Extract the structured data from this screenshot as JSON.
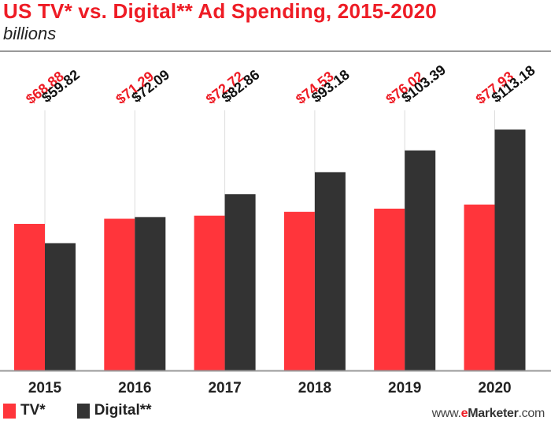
{
  "chart_data": {
    "type": "bar",
    "title": "US TV* vs. Digital** Ad Spending, 2015-2020",
    "subtitle": "billions",
    "xlabel": "",
    "ylabel": "",
    "categories": [
      "2015",
      "2016",
      "2017",
      "2018",
      "2019",
      "2020"
    ],
    "series": [
      {
        "name": "TV*",
        "color": "#ff353b",
        "label_color": "#ee1c25",
        "values": [
          68.88,
          71.29,
          72.72,
          74.53,
          76.02,
          77.93
        ],
        "labels": [
          "$68.88",
          "$71.29",
          "$72.72",
          "$74.53",
          "$76.02",
          "$77.93"
        ]
      },
      {
        "name": "Digital**",
        "color": "#333333",
        "label_color": "#111111",
        "values": [
          59.82,
          72.09,
          82.86,
          93.18,
          103.39,
          113.18
        ],
        "labels": [
          "$59.82",
          "$72.09",
          "$82.86",
          "$93.18",
          "$103.39",
          "$113.18"
        ]
      }
    ],
    "ylim": [
      0,
      150
    ],
    "grid": false,
    "legend_position": "bottom-left"
  },
  "source": {
    "prefix": "www.",
    "e": "e",
    "brand": "Marketer",
    "suffix": ".com"
  }
}
